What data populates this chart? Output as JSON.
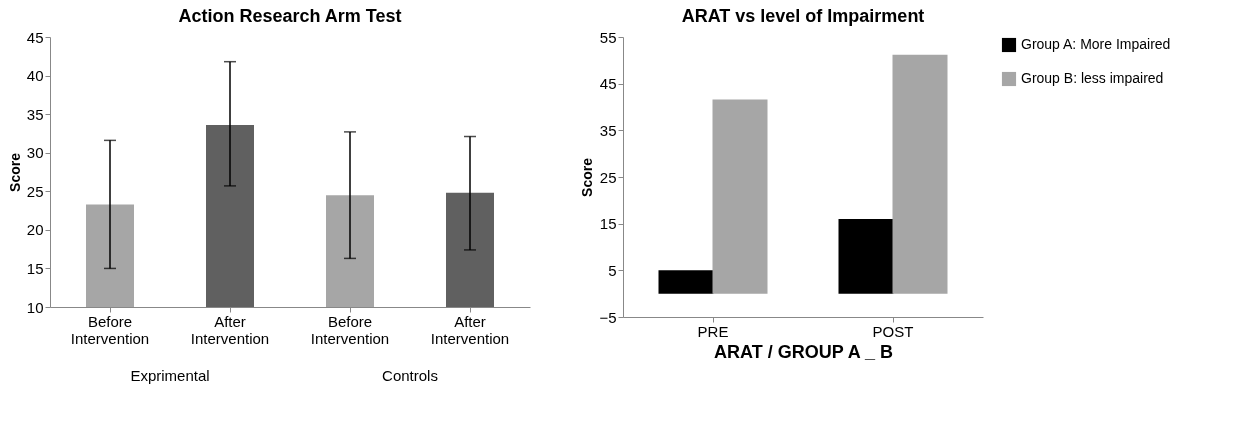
{
  "chart_data": [
    {
      "type": "bar",
      "title": "Action Research Arm Test",
      "ylabel": "Score",
      "categories": [
        "Before Intervention",
        "After Intervention",
        "Before Intervention",
        "After Intervention"
      ],
      "values": [
        23.3,
        33.6,
        24.5,
        24.8
      ],
      "colors": [
        "#a6a6a6",
        "#606060",
        "#a6a6a6",
        "#606060"
      ],
      "errors": [
        [
          15.0,
          31.6
        ],
        [
          25.7,
          41.8
        ],
        [
          16.3,
          32.7
        ],
        [
          17.4,
          32.1
        ]
      ],
      "annotations": [
        "Exprimental",
        "Controls"
      ],
      "ylim": [
        10,
        45
      ],
      "yticks": [
        10,
        15,
        20,
        25,
        30,
        35,
        40,
        45
      ],
      "grid": false,
      "legend": false
    },
    {
      "type": "bar",
      "title": "ARAT vs level of Impairment",
      "xlabel": "ARAT / GROUP A _ B",
      "ylabel": "Score",
      "categories": [
        "PRE",
        "POST"
      ],
      "series": [
        {
          "name": "Group A: More Impaired",
          "color": "#000000",
          "values": [
            5,
            16
          ]
        },
        {
          "name": "Group B: less impaired",
          "color": "#a6a6a6",
          "values": [
            41.6,
            51.2
          ]
        }
      ],
      "ylim": [
        -5,
        55
      ],
      "yticks": [
        -5,
        5,
        15,
        25,
        35,
        45,
        55
      ],
      "grid": false,
      "legend": "right"
    }
  ]
}
